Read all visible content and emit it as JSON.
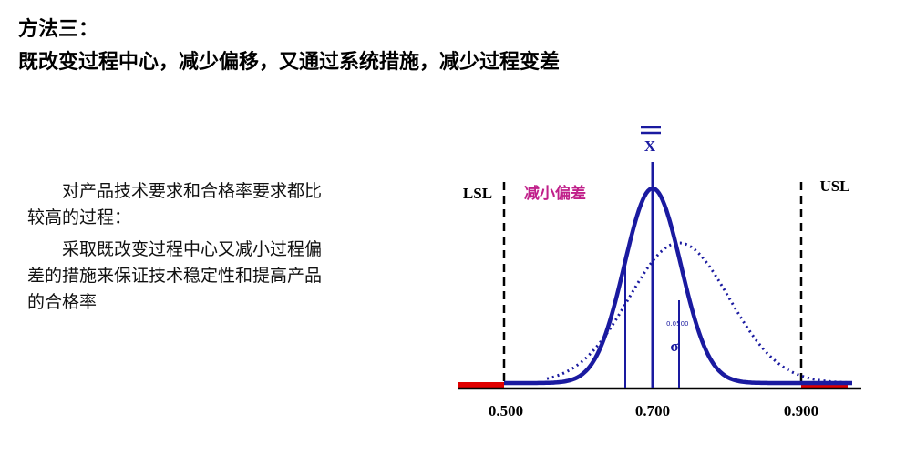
{
  "header": {
    "title": "方法三：",
    "subtitle": "既改变过程中心，减少偏移，又通过系统措施，减少过程变差"
  },
  "body": {
    "paragraphs": [
      "对产品技术要求和合格率要求都比较高的过程：",
      "采取既改变过程中心又减小过程偏差的措施来保证技术稳定性和提高产品的合格率"
    ]
  },
  "diagram": {
    "mean_label": "X",
    "lsl": "LSL",
    "usl": "USL",
    "annotation": "减小偏差",
    "sigma_value": "0.0500",
    "sigma": "σ",
    "axis_labels": [
      "0.500",
      "0.700",
      "0.900"
    ]
  }
}
